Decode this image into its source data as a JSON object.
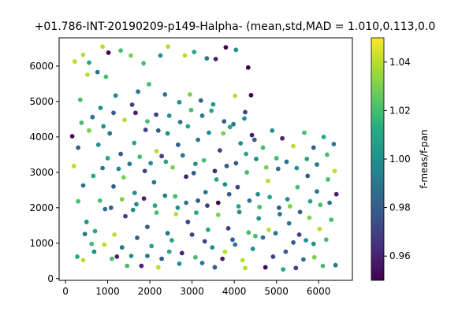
{
  "chart_data": {
    "type": "scatter",
    "title": "+01.786-INT-20190209-p149-Halpha- (mean,std,MAD = 1.010,0.113,0.0",
    "xlabel": "",
    "ylabel": "",
    "xlim": [
      -150,
      6800
    ],
    "ylim": [
      -50,
      6800
    ],
    "x_ticks": [
      0,
      1000,
      2000,
      3000,
      4000,
      5000,
      6000
    ],
    "y_ticks": [
      0,
      1000,
      2000,
      3000,
      4000,
      5000,
      6000
    ],
    "grid": false,
    "colorbar": {
      "label": "f-meas/f-pan",
      "colormap": "viridis",
      "range": [
        0.95,
        1.05
      ],
      "ticks": [
        "0.96",
        "0.98",
        "1.00",
        "1.02",
        "1.04"
      ]
    },
    "points": [
      [
        220,
        6130,
        1.04
      ],
      [
        420,
        6320,
        1.04
      ],
      [
        560,
        6100,
        1.01
      ],
      [
        760,
        5830,
        0.99
      ],
      [
        880,
        6550,
        1.04
      ],
      [
        1020,
        6380,
        0.95
      ],
      [
        1310,
        6440,
        1.02
      ],
      [
        1550,
        6300,
        1.03
      ],
      [
        1850,
        6080,
        1.02
      ],
      [
        2250,
        6300,
        1.0
      ],
      [
        2430,
        6550,
        1.04
      ],
      [
        2830,
        6300,
        1.04
      ],
      [
        3050,
        6400,
        1.01
      ],
      [
        3350,
        6220,
        0.99
      ],
      [
        3560,
        6200,
        0.96
      ],
      [
        3800,
        6530,
        0.95
      ],
      [
        4040,
        6460,
        1.0
      ],
      [
        4330,
        5960,
        0.95
      ],
      [
        350,
        5050,
        1.02
      ],
      [
        520,
        5760,
        1.04
      ],
      [
        830,
        4820,
        1.0
      ],
      [
        960,
        5700,
        1.02
      ],
      [
        1190,
        5170,
        1.0
      ],
      [
        1580,
        4910,
        0.97
      ],
      [
        1720,
        5280,
        0.99
      ],
      [
        1980,
        5490,
        1.02
      ],
      [
        2150,
        4630,
        0.97
      ],
      [
        2360,
        5200,
        0.99
      ],
      [
        2700,
        4980,
        1.0
      ],
      [
        2950,
        5200,
        1.03
      ],
      [
        3210,
        5030,
        0.98
      ],
      [
        3460,
        4740,
        1.01
      ],
      [
        3760,
        4440,
        0.98
      ],
      [
        4020,
        5160,
        1.04
      ],
      [
        4260,
        4700,
        0.97
      ],
      [
        4400,
        5180,
        0.95
      ],
      [
        160,
        4020,
        0.95
      ],
      [
        300,
        3700,
        0.98
      ],
      [
        560,
        4180,
        1.03
      ],
      [
        780,
        3780,
        1.0
      ],
      [
        1050,
        4100,
        0.99
      ],
      [
        1310,
        3520,
        0.98
      ],
      [
        1630,
        3830,
        1.01
      ],
      [
        1900,
        4200,
        0.97
      ],
      [
        2160,
        3600,
        1.04
      ],
      [
        2420,
        4100,
        1.0
      ],
      [
        2670,
        3780,
        0.98
      ],
      [
        2900,
        4300,
        1.01
      ],
      [
        3140,
        3920,
        0.99
      ],
      [
        3400,
        4120,
        1.0
      ],
      [
        3660,
        3620,
        0.97
      ],
      [
        3900,
        4280,
        1.01
      ],
      [
        4150,
        3820,
        1.0
      ],
      [
        4420,
        4050,
        0.96
      ],
      [
        4680,
        3700,
        1.02
      ],
      [
        4900,
        4180,
        1.0
      ],
      [
        5140,
        3960,
        0.96
      ],
      [
        5400,
        3740,
        1.04
      ],
      [
        5660,
        4120,
        1.02
      ],
      [
        5880,
        3700,
        0.98
      ],
      [
        6120,
        4000,
        1.01
      ],
      [
        6360,
        3800,
        0.99
      ],
      [
        200,
        3180,
        1.04
      ],
      [
        420,
        2630,
        0.99
      ],
      [
        660,
        2900,
        1.01
      ],
      [
        880,
        3120,
        0.99
      ],
      [
        1140,
        2600,
        0.98
      ],
      [
        1380,
        2860,
        1.03
      ],
      [
        1640,
        2420,
        1.0
      ],
      [
        1880,
        3040,
        0.97
      ],
      [
        2100,
        2720,
        0.99
      ],
      [
        2380,
        3300,
        1.01
      ],
      [
        2600,
        2320,
        1.02
      ],
      [
        2860,
        2880,
        0.96
      ],
      [
        3080,
        3240,
        1.0
      ],
      [
        3320,
        2440,
        0.99
      ],
      [
        3580,
        2800,
        1.01
      ],
      [
        3820,
        3180,
        0.98
      ],
      [
        4080,
        2580,
        0.97
      ],
      [
        4300,
        3000,
        1.02
      ],
      [
        4560,
        2380,
        1.0
      ],
      [
        4800,
        2760,
        1.04
      ],
      [
        5040,
        3100,
        0.99
      ],
      [
        5260,
        2240,
        1.0
      ],
      [
        5500,
        2580,
        1.02
      ],
      [
        5740,
        2900,
        0.98
      ],
      [
        5960,
        2460,
        0.99
      ],
      [
        6220,
        2800,
        1.02
      ],
      [
        6420,
        2380,
        0.96
      ],
      [
        300,
        2180,
        1.02
      ],
      [
        500,
        1600,
        1.0
      ],
      [
        700,
        1340,
        1.01
      ],
      [
        940,
        1960,
        0.99
      ],
      [
        1160,
        1240,
        1.04
      ],
      [
        1420,
        1760,
        0.97
      ],
      [
        1680,
        2100,
        1.0
      ],
      [
        1940,
        1460,
        0.98
      ],
      [
        2160,
        1860,
        1.02
      ],
      [
        2420,
        1280,
        0.99
      ],
      [
        2660,
        2000,
        1.0
      ],
      [
        2900,
        1600,
        0.97
      ],
      [
        3140,
        2200,
        0.98
      ],
      [
        3380,
        1380,
        1.01
      ],
      [
        3620,
        1800,
        1.03
      ],
      [
        3860,
        1420,
        0.97
      ],
      [
        4100,
        2040,
        1.01
      ],
      [
        4340,
        1300,
        1.02
      ],
      [
        4580,
        1700,
        1.0
      ],
      [
        4820,
        1380,
        1.04
      ],
      [
        5060,
        2000,
        0.98
      ],
      [
        5300,
        1560,
        0.99
      ],
      [
        5540,
        1240,
        0.97
      ],
      [
        5780,
        1720,
        1.03
      ],
      [
        6020,
        1400,
        1.04
      ],
      [
        6300,
        1660,
        1.02
      ],
      [
        280,
        620,
        1.01
      ],
      [
        460,
        1260,
        0.99
      ],
      [
        680,
        760,
        1.0
      ],
      [
        920,
        960,
        1.04
      ],
      [
        1100,
        560,
        1.02
      ],
      [
        1340,
        880,
        0.99
      ],
      [
        1560,
        640,
        1.0
      ],
      [
        1800,
        360,
        0.96
      ],
      [
        2040,
        920,
        1.01
      ],
      [
        2280,
        560,
        0.98
      ],
      [
        2520,
        1080,
        1.01
      ],
      [
        2760,
        720,
        0.96
      ],
      [
        3000,
        1240,
        0.97
      ],
      [
        3240,
        440,
        0.99
      ],
      [
        3480,
        880,
        1.0
      ],
      [
        3720,
        560,
        0.96
      ],
      [
        3960,
        1100,
        0.98
      ],
      [
        4200,
        520,
        1.04
      ],
      [
        4440,
        840,
        1.0
      ],
      [
        4680,
        1160,
        0.99
      ],
      [
        4920,
        620,
        0.97
      ],
      [
        5160,
        260,
        1.01
      ],
      [
        5400,
        1020,
        0.98
      ],
      [
        5640,
        540,
        0.99
      ],
      [
        5880,
        980,
        1.0
      ],
      [
        6100,
        360,
        1.02
      ],
      [
        6400,
        380,
        0.99
      ],
      [
        420,
        520,
        1.04
      ],
      [
        620,
        980,
        1.02
      ],
      [
        1220,
        620,
        0.96
      ],
      [
        1460,
        360,
        1.02
      ],
      [
        1700,
        1150,
        0.98
      ],
      [
        1940,
        640,
        0.99
      ],
      [
        2200,
        320,
        1.04
      ],
      [
        2460,
        760,
        1.01
      ],
      [
        2700,
        420,
        1.0
      ],
      [
        3080,
        600,
        1.02
      ],
      [
        3300,
        1050,
        0.97
      ],
      [
        3540,
        320,
        0.98
      ],
      [
        3780,
        760,
        1.04
      ],
      [
        4020,
        960,
        0.99
      ],
      [
        4260,
        300,
        1.04
      ],
      [
        4500,
        1200,
        1.02
      ],
      [
        4740,
        320,
        0.95
      ],
      [
        4980,
        1280,
        0.99
      ],
      [
        5220,
        760,
        0.98
      ],
      [
        5460,
        300,
        0.97
      ],
      [
        5700,
        1080,
        1.0
      ],
      [
        5900,
        600,
        1.03
      ],
      [
        6180,
        1100,
        1.02
      ],
      [
        380,
        4400,
        1.02
      ],
      [
        640,
        4560,
        0.99
      ],
      [
        900,
        4300,
        1.0
      ],
      [
        1140,
        4680,
        0.98
      ],
      [
        1400,
        4480,
        1.04
      ],
      [
        1660,
        4680,
        0.96
      ],
      [
        1940,
        4440,
        1.02
      ],
      [
        2200,
        4180,
        0.98
      ],
      [
        2460,
        4600,
        1.0
      ],
      [
        2720,
        4420,
        0.99
      ],
      [
        2980,
        4760,
        1.02
      ],
      [
        3240,
        4600,
        0.99
      ],
      [
        3500,
        4920,
        1.0
      ],
      [
        3740,
        4100,
        1.03
      ],
      [
        3980,
        4360,
        0.99
      ],
      [
        4240,
        4520,
        1.0
      ],
      [
        4480,
        3920,
        0.98
      ],
      [
        1000,
        3400,
        1.01
      ],
      [
        1260,
        3100,
        1.0
      ],
      [
        1520,
        3240,
        0.99
      ],
      [
        1760,
        3440,
        1.02
      ],
      [
        2020,
        3260,
        1.0
      ],
      [
        2280,
        3460,
        0.97
      ],
      [
        2540,
        3140,
        1.03
      ],
      [
        2780,
        3480,
        0.99
      ],
      [
        3040,
        2980,
        0.98
      ],
      [
        3280,
        3340,
        1.02
      ],
      [
        3540,
        3040,
        0.96
      ],
      [
        3780,
        2660,
        1.0
      ],
      [
        4040,
        3260,
        0.98
      ],
      [
        4280,
        3520,
        1.01
      ],
      [
        4520,
        3380,
        1.0
      ],
      [
        4760,
        3140,
        1.03
      ],
      [
        5000,
        3400,
        1.02
      ],
      [
        5240,
        3300,
        0.99
      ],
      [
        5480,
        3120,
        1.0
      ],
      [
        5720,
        3380,
        1.01
      ],
      [
        5960,
        3220,
        0.99
      ],
      [
        6200,
        3500,
        1.02
      ],
      [
        6380,
        3040,
        1.04
      ],
      [
        820,
        2200,
        1.02
      ],
      [
        1080,
        2000,
        0.98
      ],
      [
        1340,
        2240,
        1.03
      ],
      [
        1600,
        1940,
        1.0
      ],
      [
        1860,
        2260,
        0.96
      ],
      [
        2120,
        2060,
        1.01
      ],
      [
        2360,
        2340,
        0.99
      ],
      [
        2620,
        1820,
        1.04
      ],
      [
        2860,
        2140,
        0.99
      ],
      [
        3100,
        1860,
        1.01
      ],
      [
        3360,
        2060,
        0.97
      ],
      [
        3620,
        2140,
        0.95
      ],
      [
        3880,
        2380,
        0.98
      ],
      [
        4120,
        1880,
        1.0
      ],
      [
        4360,
        2200,
        0.99
      ],
      [
        4600,
        2020,
        1.02
      ],
      [
        4840,
        2300,
        1.01
      ],
      [
        5080,
        1820,
        0.99
      ],
      [
        5320,
        2040,
        1.03
      ],
      [
        5560,
        1880,
        0.98
      ],
      [
        5800,
        2180,
        1.01
      ],
      [
        6040,
        2080,
        1.02
      ],
      [
        6260,
        2140,
        0.99
      ]
    ]
  }
}
